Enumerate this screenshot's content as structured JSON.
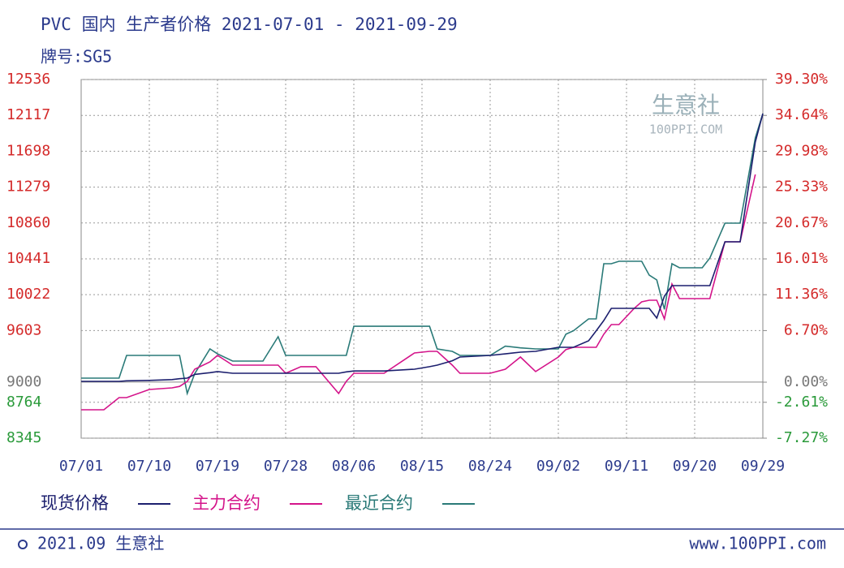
{
  "chart_data": {
    "type": "line",
    "title": "PVC 国内 生产者价格 2021-07-01 - 2021-09-29",
    "subtitle": "牌号:SG5",
    "watermark": [
      "生意社",
      "100PPI.COM"
    ],
    "footer": [
      "2021.09 生意社",
      "www.100PPI.com"
    ],
    "x": [
      "07/01",
      "07/04",
      "07/06",
      "07/07",
      "07/10",
      "07/13",
      "07/14",
      "07/15",
      "07/16",
      "07/18",
      "07/19",
      "07/21",
      "07/25",
      "07/27",
      "07/28",
      "07/30",
      "08/01",
      "08/04",
      "08/05",
      "08/06",
      "08/07",
      "08/10",
      "08/14",
      "08/16",
      "08/17",
      "08/19",
      "08/20",
      "08/24",
      "08/26",
      "08/28",
      "08/30",
      "09/02",
      "09/03",
      "09/04",
      "09/06",
      "09/07",
      "09/08",
      "09/09",
      "09/10",
      "09/12",
      "09/13",
      "09/14",
      "09/15",
      "09/16",
      "09/17",
      "09/18",
      "09/21",
      "09/22",
      "09/24",
      "09/26",
      "09/28",
      "09/29"
    ],
    "xlim": [
      "07/01",
      "09/29"
    ],
    "xticks": [
      "07/01",
      "07/10",
      "07/19",
      "07/28",
      "08/06",
      "08/15",
      "08/24",
      "09/02",
      "09/11",
      "09/20",
      "09/29"
    ],
    "ylim": [
      8345,
      12536
    ],
    "yticks": [
      8345,
      8764,
      9000,
      9603,
      10022,
      10441,
      10860,
      11279,
      11698,
      12117,
      12536
    ],
    "y2lim": [
      -7.27,
      39.3
    ],
    "y2ticks": [
      {
        "value": -7.27,
        "label": "-7.27%"
      },
      {
        "value": -2.61,
        "label": "-2.61%"
      },
      {
        "value": 0,
        "label": "0.00%"
      },
      {
        "value": 6.7,
        "label": "6.70%"
      },
      {
        "value": 11.36,
        "label": "11.36%"
      },
      {
        "value": 16.01,
        "label": "16.01%"
      },
      {
        "value": 20.67,
        "label": "20.67%"
      },
      {
        "value": 25.33,
        "label": "25.33%"
      },
      {
        "value": 29.98,
        "label": "29.98%"
      },
      {
        "value": 34.64,
        "label": "34.64%"
      },
      {
        "value": 39.3,
        "label": "39.30%"
      }
    ],
    "grid": true,
    "up_color": "#d42a2a",
    "down_color": "#2a9a3a",
    "zero_color": "#777777",
    "series": [
      {
        "name": "现货价格",
        "color": "#1c1f6e",
        "values": [
          9009,
          9009,
          9009,
          9015,
          9020,
          9030,
          9040,
          9047,
          9090,
          9110,
          9123,
          9104,
          9104,
          9104,
          9104,
          9104,
          9104,
          9104,
          9120,
          9130,
          9130,
          9130,
          9151,
          9180,
          9198,
          9250,
          9293,
          9312,
          9330,
          9350,
          9360,
          9407,
          9407,
          9407,
          9483,
          9600,
          9720,
          9862,
          9862,
          9862,
          9862,
          9862,
          9748,
          10004,
          10128,
          10128,
          10128,
          10128,
          10640,
          10640,
          11806,
          12138
        ]
      },
      {
        "name": "主力合约",
        "color": "#d4148a",
        "values": [
          8677,
          8677,
          8819,
          8819,
          8914,
          8933,
          8950,
          9009,
          9151,
          9236,
          9312,
          9198,
          9198,
          9198,
          9104,
          9180,
          9180,
          8867,
          9009,
          9104,
          9104,
          9104,
          9341,
          9360,
          9360,
          9198,
          9104,
          9104,
          9151,
          9293,
          9123,
          9293,
          9380,
          9407,
          9407,
          9407,
          9560,
          9672,
          9672,
          9860,
          9938,
          9957,
          9957,
          9739,
          10147,
          9976,
          9976,
          9976,
          10640,
          10640,
          11427,
          null
        ]
      },
      {
        "name": "最近合约",
        "color": "#2a7a78",
        "values": [
          9047,
          9047,
          9047,
          9312,
          9312,
          9312,
          9312,
          8867,
          9100,
          9388,
          9330,
          9246,
          9246,
          9530,
          9312,
          9312,
          9312,
          9312,
          9312,
          9653,
          9653,
          9653,
          9653,
          9653,
          9388,
          9360,
          9312,
          9312,
          9420,
          9400,
          9388,
          9388,
          9560,
          9600,
          9739,
          9739,
          10384,
          10384,
          10412,
          10412,
          10412,
          10250,
          10194,
          9850,
          10384,
          10336,
          10336,
          10450,
          10858,
          10858,
          11853,
          12138
        ]
      }
    ]
  }
}
